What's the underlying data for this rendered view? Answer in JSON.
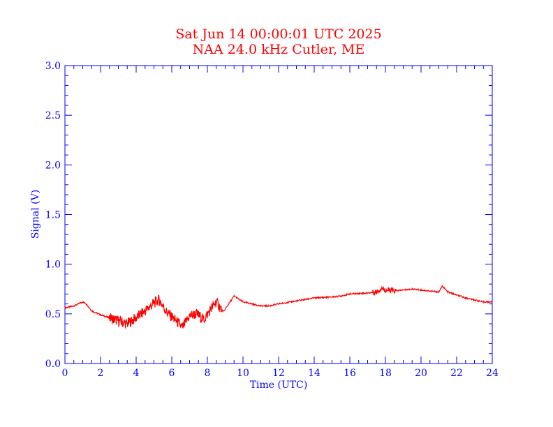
{
  "colors": {
    "axis": "#0000ff",
    "title": "#ff0000",
    "series": "#ff0000",
    "background": "#ffffff"
  },
  "chart_data": {
    "type": "line",
    "title": "Sat Jun 14 00:00:01 UTC 2025",
    "subtitle": "NAA 24.0 kHz Cutler, ME",
    "xlabel": "Time (UTC)",
    "ylabel": "Signal (V)",
    "xlim": [
      0,
      24
    ],
    "ylim": [
      0.0,
      3.0
    ],
    "x_ticks": [
      "0",
      "2",
      "4",
      "6",
      "8",
      "10",
      "12",
      "14",
      "16",
      "18",
      "20",
      "22",
      "24"
    ],
    "y_ticks": [
      "0.0",
      "0.5",
      "1.0",
      "1.5",
      "2.0",
      "2.5",
      "3.0"
    ],
    "grid": false,
    "series": [
      {
        "x": [
          0.0,
          0.5,
          1.0,
          1.2,
          1.5,
          2.0,
          2.5,
          3.0,
          3.5,
          4.0,
          4.5,
          5.0,
          5.3,
          5.7,
          6.0,
          6.3,
          6.6,
          7.0,
          7.4,
          7.8,
          8.2,
          8.5,
          8.9,
          9.2,
          9.5,
          10.0,
          10.5,
          11.0,
          11.5,
          12.0,
          13.0,
          14.0,
          15.0,
          15.5,
          16.0,
          17.0,
          17.5,
          17.8,
          18.0,
          18.5,
          19.0,
          19.5,
          20.0,
          20.5,
          21.0,
          21.2,
          21.5,
          22.0,
          22.5,
          23.0,
          23.5,
          24.0
        ],
        "values": [
          0.56,
          0.58,
          0.62,
          0.6,
          0.53,
          0.49,
          0.46,
          0.43,
          0.4,
          0.46,
          0.53,
          0.61,
          0.64,
          0.52,
          0.47,
          0.42,
          0.36,
          0.48,
          0.5,
          0.44,
          0.55,
          0.62,
          0.52,
          0.6,
          0.68,
          0.62,
          0.6,
          0.58,
          0.58,
          0.6,
          0.63,
          0.66,
          0.67,
          0.68,
          0.7,
          0.71,
          0.72,
          0.76,
          0.74,
          0.73,
          0.74,
          0.75,
          0.74,
          0.73,
          0.72,
          0.78,
          0.72,
          0.69,
          0.66,
          0.64,
          0.62,
          0.62
        ]
      }
    ]
  }
}
